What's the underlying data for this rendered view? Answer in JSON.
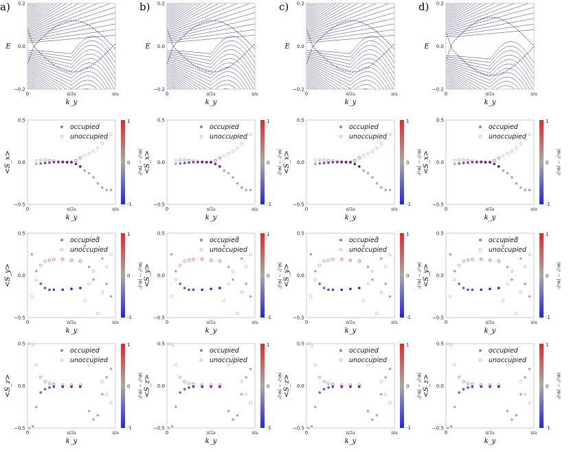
{
  "figure": {
    "columns": [
      {
        "label": "a)",
        "gap": 0.0
      },
      {
        "label": "b)",
        "gap": 0.0
      },
      {
        "label": "c)",
        "gap": 0.0
      },
      {
        "label": "d)",
        "gap": 0.05
      }
    ],
    "legend": {
      "occupied": "occupied",
      "unoccupied": "unoccupied"
    },
    "colorbar": {
      "ticks": [
        "1",
        "0",
        "-1"
      ],
      "label": "|Ψ₁|² − |Ψ₂|²",
      "colors": [
        "#ee2222",
        "#a8a8a8",
        "#2222ee"
      ]
    }
  },
  "chart_data": [
    {
      "type": "line",
      "row": "band-structure",
      "ylabel": "E",
      "xlabel": "k_y",
      "ylim": [
        -0.2,
        0.2
      ],
      "yticks": [
        "0.2",
        "0.0",
        "−0.2"
      ],
      "xticks": [
        "0",
        "π/2a",
        "π/a"
      ],
      "xlim": [
        0,
        1
      ],
      "series": [
        {
          "name": "bulk bands",
          "description": "dense dark-blue subband fan; gap minimum near k=0.35",
          "color": "#1a1a80"
        },
        {
          "name": "edge states",
          "description": "dashed lines crossing E=0 near k=0.07",
          "color": "#1a1a80"
        }
      ]
    },
    {
      "type": "scatter",
      "row": "Sx",
      "ylabel": "<S_x>",
      "xlabel": "k_y",
      "ylim": [
        -0.5,
        0.5
      ],
      "yticks": [
        "0.5",
        "0.0",
        "−0.5"
      ],
      "xticks": [
        "0",
        "π/2a",
        "π/a"
      ],
      "series": [
        {
          "name": "occupied",
          "x": [
            0.1,
            0.15,
            0.2,
            0.25,
            0.3,
            0.35,
            0.4,
            0.45,
            0.5,
            0.55,
            0.6,
            0.65,
            0.7,
            0.75,
            0.8,
            0.85,
            0.9,
            0.95
          ],
          "y": [
            -0.02,
            -0.015,
            -0.01,
            -0.005,
            0,
            0,
            0,
            0,
            0,
            -0.02,
            -0.05,
            -0.1,
            -0.13,
            -0.18,
            -0.25,
            -0.3,
            -0.33,
            -0.33
          ]
        },
        {
          "name": "unoccupied",
          "x": [
            0.1,
            0.15,
            0.2,
            0.25,
            0.3,
            0.35,
            0.4,
            0.45,
            0.5,
            0.55,
            0.6,
            0.65,
            0.7,
            0.75,
            0.8,
            0.85,
            0.9,
            0.95
          ],
          "y": [
            0.02,
            0.03,
            0.025,
            0.02,
            0.015,
            0.01,
            0.005,
            0,
            0,
            0.02,
            0.05,
            0.08,
            0.1,
            0.13,
            0.17,
            0.22,
            0.28,
            0.33
          ]
        }
      ]
    },
    {
      "type": "scatter",
      "row": "Sy",
      "ylabel": "<S_y>",
      "xlabel": "k_y",
      "ylim": [
        -0.5,
        0.5
      ],
      "yticks": [
        "0.5",
        "0.0",
        "−0.5"
      ],
      "xticks": [
        "0",
        "π/2a",
        "π/a"
      ],
      "series": [
        {
          "name": "occupied",
          "x": [
            0.05,
            0.1,
            0.15,
            0.2,
            0.25,
            0.3,
            0.4,
            0.5,
            0.6,
            0.65,
            0.7,
            0.75,
            0.8,
            0.85,
            0.9,
            0.95
          ],
          "y": [
            0.25,
            0.05,
            -0.1,
            -0.15,
            -0.17,
            -0.17,
            -0.17,
            -0.16,
            -0.15,
            0.35,
            0.1,
            -0.05,
            0.45,
            0.2,
            -0.1,
            -0.25
          ]
        },
        {
          "name": "unoccupied",
          "x": [
            0.05,
            0.1,
            0.15,
            0.2,
            0.25,
            0.3,
            0.4,
            0.5,
            0.6,
            0.65,
            0.7,
            0.75,
            0.8,
            0.85,
            0.9,
            0.95
          ],
          "y": [
            -0.25,
            -0.05,
            0.12,
            0.17,
            0.18,
            0.19,
            0.19,
            0.18,
            0.17,
            -0.3,
            -0.1,
            0.05,
            -0.45,
            -0.2,
            0.1,
            0.25
          ]
        }
      ]
    },
    {
      "type": "scatter",
      "row": "Sz",
      "ylabel": "<S_z>",
      "xlabel": "k_y",
      "ylim": [
        -0.5,
        0.5
      ],
      "yticks": [
        "0.5",
        "0.0",
        "−0.5"
      ],
      "xticks": [
        "0",
        "π/2a",
        "π/a"
      ],
      "series": [
        {
          "name": "occupied",
          "x": [
            0.02,
            0.06,
            0.1,
            0.15,
            0.2,
            0.25,
            0.3,
            0.4,
            0.5,
            0.6,
            0.7,
            0.75,
            0.8,
            0.85,
            0.9,
            0.95
          ],
          "y": [
            -0.5,
            -0.48,
            -0.25,
            -0.08,
            -0.04,
            -0.02,
            -0.01,
            -0.01,
            -0.01,
            -0.01,
            -0.3,
            -0.4,
            -0.35,
            -0.1,
            0.1,
            0.2
          ]
        },
        {
          "name": "unoccupied",
          "x": [
            0.02,
            0.06,
            0.1,
            0.15,
            0.2,
            0.25,
            0.3,
            0.4,
            0.5,
            0.6,
            0.7,
            0.75,
            0.8,
            0.85,
            0.9,
            0.95
          ],
          "y": [
            0.5,
            0.48,
            0.25,
            0.1,
            0.05,
            0.03,
            0.02,
            0.01,
            0.01,
            0.01,
            0.25,
            0.35,
            0.3,
            0.05,
            -0.1,
            -0.2
          ]
        }
      ]
    }
  ]
}
